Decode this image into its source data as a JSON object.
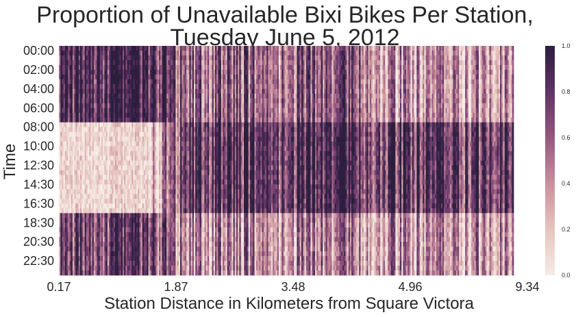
{
  "chart_data": {
    "type": "heatmap",
    "title_lines": [
      "Proportion of Unavailable Bixi Bikes Per Station,",
      "Tuesday June 5, 2012"
    ],
    "xlabel": "Station Distance in Kilometers from Square Victora",
    "ylabel": "Time",
    "x_tick_labels": [
      "0.17",
      "1.87",
      "3.48",
      "4.96",
      "9.34"
    ],
    "y_tick_labels": [
      "00:00",
      "02:00",
      "04:00",
      "06:00",
      "08:00",
      "10:00",
      "12:30",
      "14:30",
      "16:30",
      "18:30",
      "20:30",
      "22:30"
    ],
    "value_range": [
      0.0,
      1.0
    ],
    "colorbar": {
      "ticks": [
        0.0,
        0.2,
        0.4,
        0.6,
        0.8,
        1.0
      ],
      "tick_labels": [
        "0.0",
        "0.2",
        "0.4",
        "0.6",
        "0.8",
        "1.0"
      ],
      "colors": [
        "#f6ebe6",
        "#e6c4be",
        "#c98f9e",
        "#96587f",
        "#5e3466",
        "#2d1e3e"
      ]
    },
    "x_ends_km": [
      0.17,
      9.34
    ],
    "time_bands": [
      {
        "from": "00:00",
        "to": "08:00",
        "near_stations_mean": 0.88,
        "mid_stations_mean": 0.55,
        "far_stations_mean": 0.35
      },
      {
        "from": "08:00",
        "to": "17:30",
        "near_stations_mean": 0.1,
        "mid_stations_mean": 0.8,
        "far_stations_mean": 0.75
      },
      {
        "from": "17:30",
        "to": "24:00",
        "near_stations_mean": 0.72,
        "mid_stations_mean": 0.4,
        "far_stations_mean": 0.35
      }
    ],
    "grid": false,
    "colorbar_position": "right"
  }
}
